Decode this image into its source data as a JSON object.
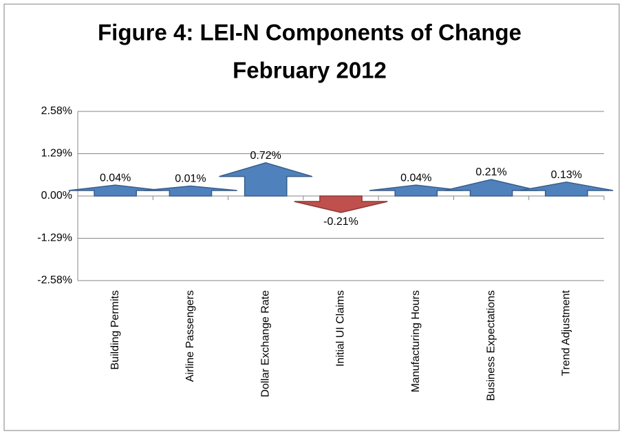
{
  "chart_data": {
    "type": "arrow-bar",
    "title": "Figure 4: LEI-N Components of Change",
    "subtitle": "February 2012",
    "categories": [
      "Building Permits",
      "Airline Passengers",
      "Dollar Exchange Rate",
      "Initial UI Claims",
      "Manufacturing Hours",
      "Business Expectations",
      "Trend Adjustment"
    ],
    "values": [
      0.04,
      0.01,
      0.72,
      -0.21,
      0.04,
      0.21,
      0.13
    ],
    "value_labels": [
      "0.04%",
      "0.01%",
      "0.72%",
      "-0.21%",
      "0.04%",
      "0.21%",
      "0.13%"
    ],
    "colors": [
      "#4f81bd",
      "#4f81bd",
      "#4f81bd",
      "#c0504d",
      "#4f81bd",
      "#4f81bd",
      "#4f81bd"
    ],
    "ylim": [
      -2.58,
      2.58
    ],
    "yticks": [
      {
        "value": -2.58,
        "label": "-2.58%"
      },
      {
        "value": -1.29,
        "label": "-1.29%"
      },
      {
        "value": 0,
        "label": "0.00%"
      },
      {
        "value": 1.29,
        "label": "1.29%"
      },
      {
        "value": 2.58,
        "label": "2.58%"
      }
    ],
    "grid": true
  }
}
